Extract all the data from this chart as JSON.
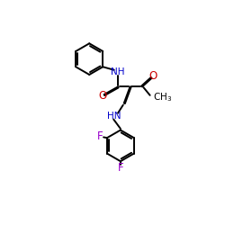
{
  "background_color": "#ffffff",
  "figsize": [
    2.5,
    2.5
  ],
  "dpi": 100,
  "colors": {
    "black": "#000000",
    "blue": "#0000cc",
    "red": "#cc0000",
    "purple": "#9900cc"
  },
  "layout": {
    "xlim": [
      0,
      10
    ],
    "ylim": [
      0,
      10
    ]
  }
}
